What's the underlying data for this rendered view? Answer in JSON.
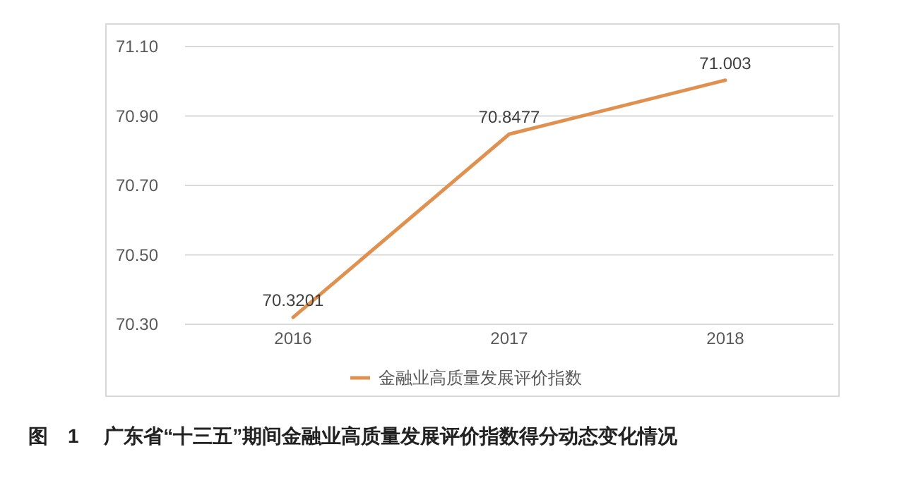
{
  "chart_data": {
    "type": "line",
    "categories": [
      "2016",
      "2017",
      "2018"
    ],
    "series": [
      {
        "name": "金融业高质量发展评价指数",
        "color": "#e0914f",
        "values": [
          70.3201,
          70.8477,
          71.003
        ]
      }
    ],
    "ylim": [
      70.3,
      71.1
    ],
    "yticks": [
      {
        "value": 70.3,
        "label": "70.30"
      },
      {
        "value": 70.5,
        "label": "70.50"
      },
      {
        "value": 70.7,
        "label": "70.70"
      },
      {
        "value": 70.9,
        "label": "70.90"
      },
      {
        "value": 71.1,
        "label": "71.10"
      }
    ],
    "grid": "y",
    "legend": "bottom",
    "marker": "none",
    "line_style": "solid",
    "data_labels": true,
    "annotations": [
      "图　1　 广东省“十三五”期间金融业高质量发展评价指数得分动态变化情况"
    ]
  }
}
